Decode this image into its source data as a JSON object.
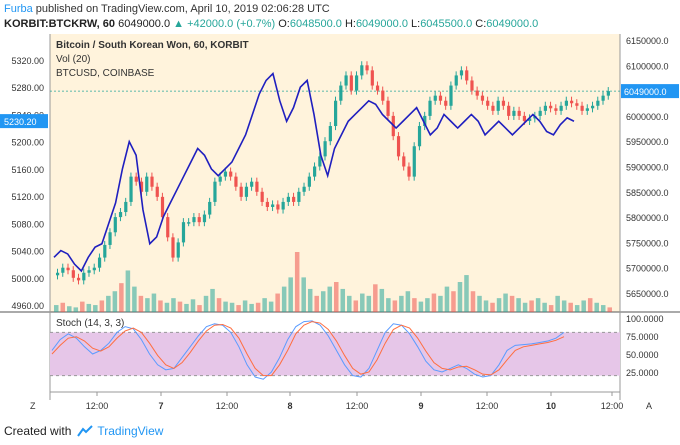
{
  "header": {
    "user": "Furba",
    "published_text": " published on TradingView.com, April 10, 2019 02:06:28 UTC",
    "symbol": "KORBIT:BTCKRW, 60",
    "price": "6049000.0",
    "change": "+42000.0 (+0.7%)",
    "o_label": "O:",
    "o_value": "6048500.0",
    "h_label": "H:",
    "h_value": "6049000.0",
    "l_label": "L:",
    "l_value": "6045500.0",
    "c_label": "C:",
    "c_value": "6049000.0"
  },
  "legend": {
    "title": "Bitcoin / South Korean Won, 60, KORBIT",
    "vol": "Vol (20)",
    "overlay": "BTCUSD, COINBASE",
    "stoch": "Stoch (14, 3, 3)"
  },
  "footer": {
    "created": "Created with",
    "brand": "TradingView"
  },
  "buttons": {
    "zoom": "Z",
    "auto": "A"
  },
  "colors": {
    "up": "#26a69a",
    "down": "#ef5350",
    "overlay": "#1f1fbf",
    "bg": "#fff3dc",
    "stoch_band": "#e6c6e8",
    "stoch_k": "#5b9bff",
    "stoch_d": "#ff6e40",
    "current_price": "#2196f3"
  },
  "chart_data": {
    "type": "candlestick",
    "right_axis": {
      "ticks": [
        "6150000.0",
        "6100000.0",
        "6050000.0",
        "6000000.0",
        "5950000.0",
        "5900000.0",
        "5850000.0",
        "5800000.0",
        "5750000.0",
        "5700000.0",
        "5650000.0"
      ],
      "current": "6049000.0"
    },
    "left_axis": {
      "ticks": [
        "5320.00",
        "5280.00",
        "5240.00",
        "5200.00",
        "5160.00",
        "5120.00",
        "5080.00",
        "5040.00",
        "5000.00",
        "4960.00"
      ],
      "current": "5230.20"
    },
    "stoch_axis": {
      "ticks": [
        "100.0000",
        "75.0000",
        "50.0000",
        "25.0000"
      ],
      "band": [
        20,
        80
      ]
    },
    "x_ticks": [
      "12:00",
      "7",
      "12:00",
      "8",
      "12:00",
      "9",
      "12:00",
      "10",
      "12:00"
    ],
    "candle_closes_krw": [
      5690000,
      5700000,
      5695000,
      5680000,
      5675000,
      5690000,
      5695000,
      5700000,
      5720000,
      5745000,
      5770000,
      5800000,
      5810000,
      5830000,
      5880000,
      5870000,
      5850000,
      5880000,
      5860000,
      5840000,
      5800000,
      5760000,
      5720000,
      5750000,
      5790000,
      5790000,
      5800000,
      5790000,
      5805000,
      5830000,
      5870000,
      5880000,
      5890000,
      5880000,
      5860000,
      5840000,
      5860000,
      5870000,
      5850000,
      5830000,
      5820000,
      5825000,
      5815000,
      5830000,
      5840000,
      5830000,
      5850000,
      5860000,
      5880000,
      5900000,
      5920000,
      5950000,
      5980000,
      6030000,
      6060000,
      6080000,
      6050000,
      6080000,
      6100000,
      6090000,
      6060000,
      6050000,
      6030000,
      6000000,
      5960000,
      5920000,
      5900000,
      5880000,
      5940000,
      5980000,
      6000000,
      6030000,
      6040000,
      6030000,
      6020000,
      6060000,
      6080000,
      6090000,
      6070000,
      6050000,
      6040000,
      6030000,
      6020000,
      6010000,
      6030000,
      6020000,
      6000000,
      6010000,
      6000000,
      5990000,
      5995000,
      6000000,
      6010000,
      6020000,
      6015000,
      6010000,
      6020000,
      6030000,
      6025000,
      6020000,
      6010000,
      6015000,
      6020000,
      6030000,
      6040000,
      6049000
    ],
    "overlay_btcusd": [
      5030,
      5040,
      5035,
      5020,
      5010,
      5030,
      5045,
      5050,
      5080,
      5110,
      5160,
      5200,
      5180,
      5100,
      5050,
      5060,
      5090,
      5110,
      5130,
      5150,
      5170,
      5190,
      5180,
      5160,
      5150,
      5160,
      5170,
      5190,
      5210,
      5240,
      5270,
      5290,
      5300,
      5260,
      5230,
      5250,
      5280,
      5290,
      5240,
      5180,
      5150,
      5190,
      5210,
      5230,
      5240,
      5250,
      5260,
      5255,
      5240,
      5230,
      5220,
      5230,
      5240,
      5250,
      5230,
      5210,
      5220,
      5240,
      5230,
      5220,
      5230,
      5240,
      5230,
      5210,
      5220,
      5230,
      5220,
      5210,
      5220,
      5230,
      5240,
      5230,
      5215,
      5210,
      5225,
      5235,
      5230
    ],
    "volume": [
      6,
      8,
      5,
      4,
      9,
      7,
      6,
      10,
      14,
      18,
      25,
      36,
      22,
      14,
      12,
      16,
      10,
      8,
      12,
      9,
      7,
      11,
      6,
      14,
      20,
      12,
      9,
      8,
      6,
      10,
      7,
      8,
      12,
      9,
      16,
      22,
      30,
      52,
      30,
      20,
      14,
      18,
      22,
      26,
      20,
      14,
      10,
      16,
      14,
      24,
      20,
      12,
      10,
      14,
      18,
      12,
      9,
      12,
      16,
      14,
      22,
      18,
      26,
      32,
      18,
      14,
      10,
      8,
      12,
      16,
      14,
      12,
      8,
      10,
      12,
      8,
      6,
      14,
      10,
      8,
      6,
      10,
      12,
      8,
      6,
      4
    ],
    "stoch_k": [
      55,
      70,
      78,
      72,
      60,
      50,
      55,
      65,
      80,
      88,
      85,
      70,
      50,
      35,
      28,
      30,
      45,
      60,
      75,
      88,
      92,
      90,
      80,
      60,
      35,
      18,
      15,
      25,
      45,
      70,
      88,
      95,
      96,
      90,
      75,
      55,
      35,
      20,
      18,
      30,
      55,
      80,
      92,
      90,
      78,
      60,
      40,
      28,
      25,
      30,
      35,
      30,
      22,
      18,
      20,
      35,
      55,
      62,
      63,
      64,
      66,
      68,
      72,
      80
    ],
    "stoch_d": [
      50,
      62,
      72,
      74,
      68,
      58,
      54,
      60,
      72,
      82,
      86,
      80,
      65,
      48,
      35,
      30,
      38,
      52,
      68,
      82,
      90,
      91,
      86,
      72,
      50,
      30,
      20,
      20,
      35,
      55,
      78,
      90,
      95,
      93,
      84,
      68,
      48,
      30,
      22,
      25,
      42,
      65,
      84,
      90,
      86,
      72,
      54,
      38,
      30,
      28,
      32,
      33,
      28,
      22,
      21,
      28,
      42,
      55,
      60,
      62,
      64,
      66,
      69,
      74
    ]
  }
}
